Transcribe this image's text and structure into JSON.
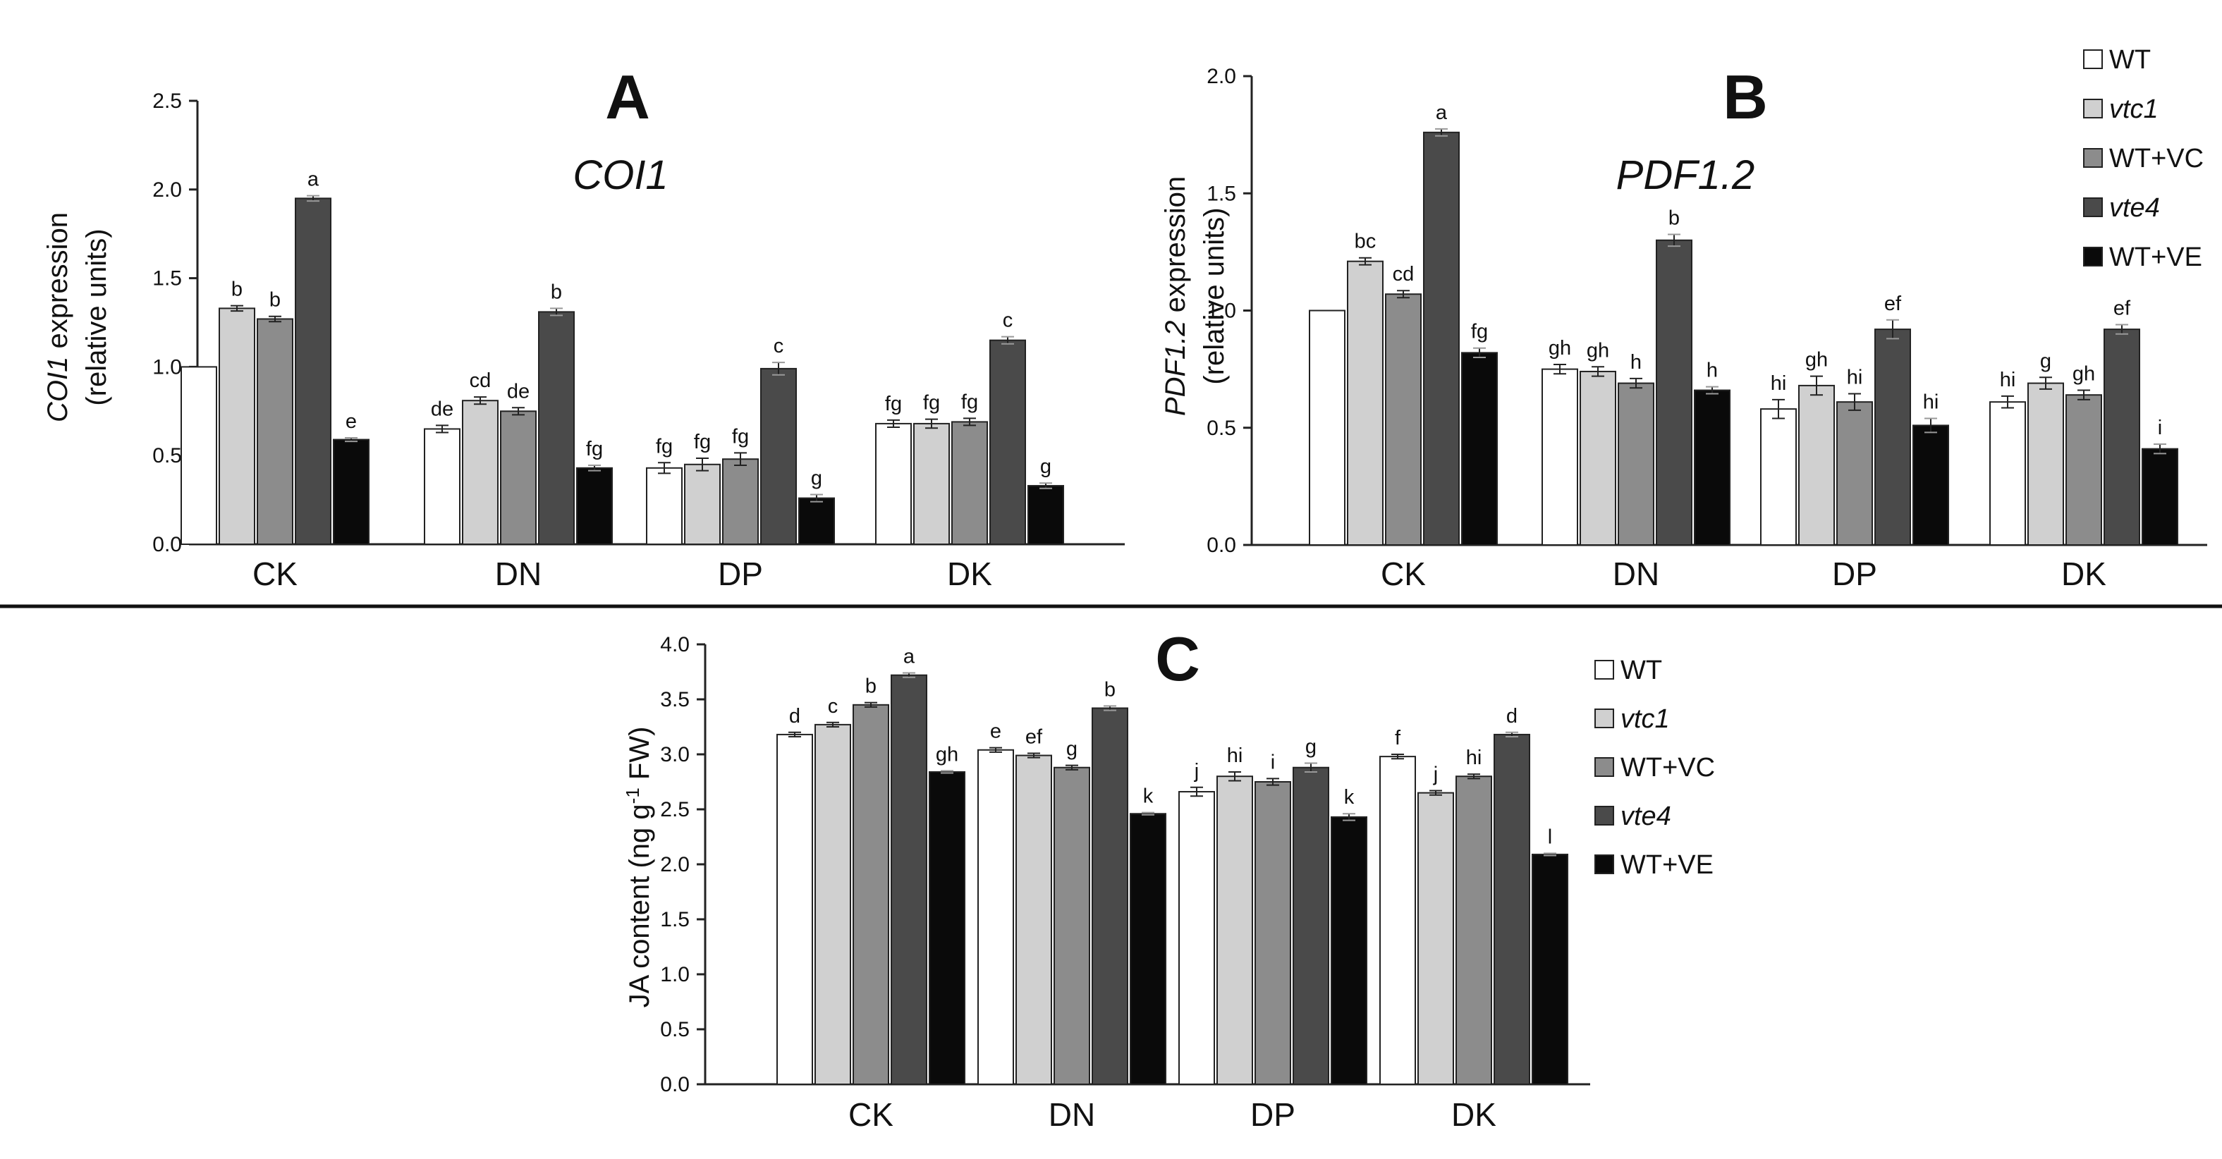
{
  "colors": {
    "WT": "#ffffff",
    "vtc1": "#d0d0d0",
    "WT+VC": "#8c8c8c",
    "vte4": "#4a4a4a",
    "WT+VE": "#0a0a0a",
    "stroke": "#222222"
  },
  "legend": {
    "entries": [
      {
        "label": "WT",
        "italic": false
      },
      {
        "label": "vtc1",
        "italic": true
      },
      {
        "label": "WT+VC",
        "italic": false
      },
      {
        "label": "vte4",
        "italic": true
      },
      {
        "label": "WT+VE",
        "italic": false
      }
    ]
  },
  "chart_data": [
    {
      "id": "A",
      "type": "bar",
      "panel_label": "A",
      "title": "COI1",
      "ylabel_italic": "COI1",
      "ylabel_rest": " expression",
      "ylabel_line2": "(relative units)",
      "ylim": [
        0,
        2.5
      ],
      "yticks": [
        "0.0",
        "0.5",
        "1.0",
        "1.5",
        "2.0",
        "2.5"
      ],
      "categories": [
        "CK",
        "DN",
        "DP",
        "DK"
      ],
      "series": [
        {
          "name": "WT",
          "values": [
            1.0,
            0.65,
            0.43,
            0.68
          ],
          "errors": [
            0,
            0.02,
            0.03,
            0.02
          ],
          "letters": [
            "",
            "de",
            "fg",
            "fg"
          ]
        },
        {
          "name": "vtc1",
          "values": [
            1.33,
            0.81,
            0.45,
            0.68
          ],
          "errors": [
            0.015,
            0.02,
            0.035,
            0.025
          ],
          "letters": [
            "b",
            "cd",
            "fg",
            "fg"
          ]
        },
        {
          "name": "WT+VC",
          "values": [
            1.27,
            0.75,
            0.48,
            0.69
          ],
          "errors": [
            0.015,
            0.02,
            0.035,
            0.02
          ],
          "letters": [
            "b",
            "de",
            "fg",
            "fg"
          ]
        },
        {
          "name": "vte4",
          "values": [
            1.95,
            1.31,
            0.99,
            1.15
          ],
          "errors": [
            0.015,
            0.02,
            0.035,
            0.02
          ],
          "letters": [
            "a",
            "b",
            "c",
            "c"
          ]
        },
        {
          "name": "WT+VE",
          "values": [
            0.59,
            0.43,
            0.26,
            0.33
          ],
          "errors": [
            0.01,
            0.015,
            0.02,
            0.015
          ],
          "letters": [
            "e",
            "fg",
            "g",
            "g"
          ]
        }
      ]
    },
    {
      "id": "B",
      "type": "bar",
      "panel_label": "B",
      "title": "PDF1.2",
      "ylabel_italic": "PDF1.2",
      "ylabel_rest": " expression",
      "ylabel_line2": "(relative units)",
      "ylim": [
        0,
        2.0
      ],
      "yticks": [
        "0.0",
        "0.5",
        "1.0",
        "1.5",
        "2.0"
      ],
      "categories": [
        "CK",
        "DN",
        "DP",
        "DK"
      ],
      "series": [
        {
          "name": "WT",
          "values": [
            1.0,
            0.75,
            0.58,
            0.61
          ],
          "errors": [
            0,
            0.02,
            0.04,
            0.025
          ],
          "letters": [
            "",
            "gh",
            "hi",
            "hi"
          ]
        },
        {
          "name": "vtc1",
          "values": [
            1.21,
            0.74,
            0.68,
            0.69
          ],
          "errors": [
            0.015,
            0.02,
            0.04,
            0.025
          ],
          "letters": [
            "bc",
            "gh",
            "gh",
            "g"
          ]
        },
        {
          "name": "WT+VC",
          "values": [
            1.07,
            0.69,
            0.61,
            0.64
          ],
          "errors": [
            0.015,
            0.02,
            0.035,
            0.02
          ],
          "letters": [
            "cd",
            "h",
            "hi",
            "gh"
          ]
        },
        {
          "name": "vte4",
          "values": [
            1.76,
            1.3,
            0.92,
            0.92
          ],
          "errors": [
            0.015,
            0.025,
            0.04,
            0.02
          ],
          "letters": [
            "a",
            "b",
            "ef",
            "ef"
          ]
        },
        {
          "name": "WT+VE",
          "values": [
            0.82,
            0.66,
            0.51,
            0.41
          ],
          "errors": [
            0.02,
            0.015,
            0.03,
            0.02
          ],
          "letters": [
            "fg",
            "h",
            "hi",
            "i"
          ]
        }
      ]
    },
    {
      "id": "C",
      "type": "bar",
      "panel_label": "C",
      "title": "",
      "ylabel_main": "JA content (ng g",
      "ylabel_sup": "-1",
      "ylabel_tail": " FW)",
      "ylim": [
        0,
        4.0
      ],
      "yticks": [
        "0.0",
        "0.5",
        "1.0",
        "1.5",
        "2.0",
        "2.5",
        "3.0",
        "3.5",
        "4.0"
      ],
      "categories": [
        "CK",
        "DN",
        "DP",
        "DK"
      ],
      "series": [
        {
          "name": "WT",
          "values": [
            3.18,
            3.04,
            2.66,
            2.98
          ],
          "errors": [
            0.02,
            0.02,
            0.04,
            0.02
          ],
          "letters": [
            "d",
            "e",
            "j",
            "f"
          ]
        },
        {
          "name": "vtc1",
          "values": [
            3.27,
            2.99,
            2.8,
            2.65
          ],
          "errors": [
            0.02,
            0.02,
            0.04,
            0.02
          ],
          "letters": [
            "c",
            "ef",
            "hi",
            "j"
          ]
        },
        {
          "name": "WT+VC",
          "values": [
            3.45,
            2.88,
            2.75,
            2.8
          ],
          "errors": [
            0.02,
            0.02,
            0.03,
            0.02
          ],
          "letters": [
            "b",
            "g",
            "i",
            "hi"
          ]
        },
        {
          "name": "vte4",
          "values": [
            3.72,
            3.42,
            2.88,
            3.18
          ],
          "errors": [
            0.02,
            0.02,
            0.04,
            0.02
          ],
          "letters": [
            "a",
            "b",
            "g",
            "d"
          ]
        },
        {
          "name": "WT+VE",
          "values": [
            2.84,
            2.46,
            2.43,
            2.09
          ],
          "errors": [
            0.01,
            0.01,
            0.03,
            0.01
          ],
          "letters": [
            "gh",
            "k",
            "k",
            "l"
          ]
        }
      ]
    }
  ]
}
